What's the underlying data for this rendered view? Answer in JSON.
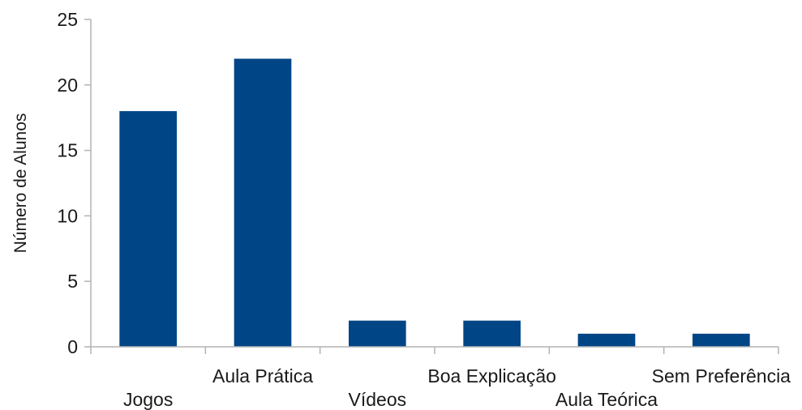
{
  "chart_data": {
    "type": "bar",
    "title": "",
    "xlabel": "",
    "ylabel": "Número de Alunos",
    "categories": [
      "Jogos",
      "Aula Prática",
      "Vídeos",
      "Boa Explicação",
      "Aula Teórica",
      "Sem Preferência"
    ],
    "values": [
      18,
      22,
      2,
      2,
      1,
      1
    ],
    "ylim": [
      0,
      25
    ],
    "yticks": [
      0,
      5,
      10,
      15,
      20,
      25
    ],
    "grid": false,
    "legend": "none",
    "colors": {
      "bar": "#004586",
      "axis": "#b3b3b3",
      "text": "#1a1a1a"
    }
  }
}
